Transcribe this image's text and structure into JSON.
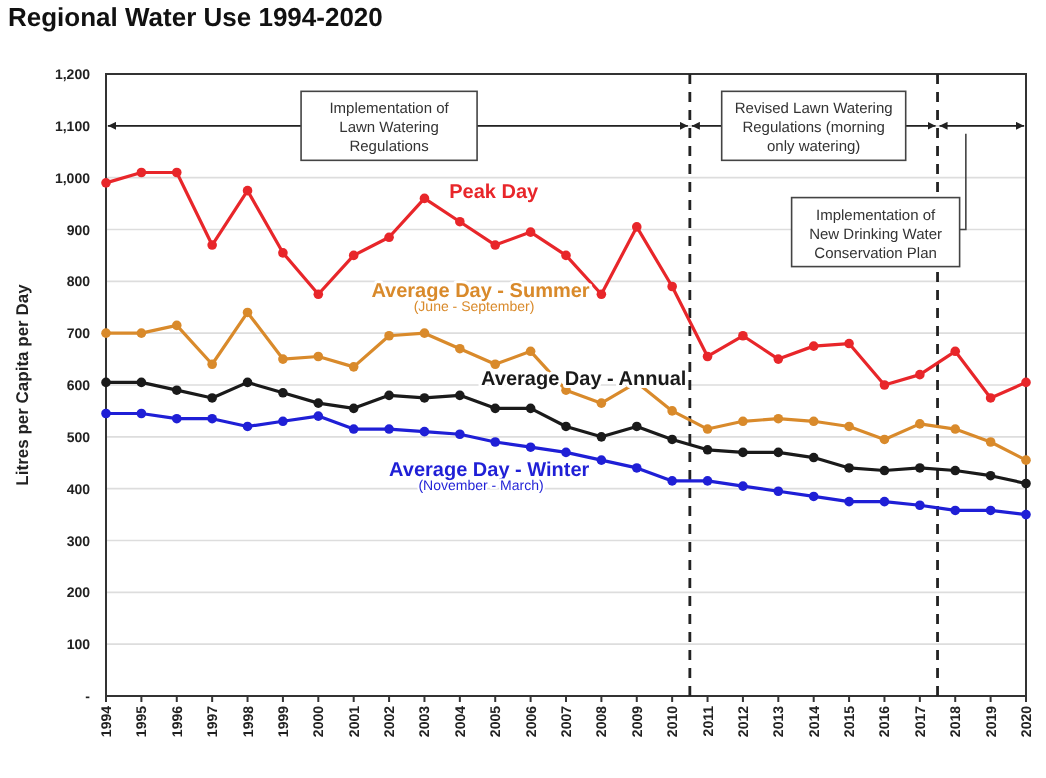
{
  "chart_data": {
    "type": "line",
    "title": "Regional Water Use 1994-2020",
    "ylabel": "Litres per Capita per Day",
    "x": [
      1994,
      1995,
      1996,
      1997,
      1998,
      1999,
      2000,
      2001,
      2002,
      2003,
      2004,
      2005,
      2006,
      2007,
      2008,
      2009,
      2010,
      2011,
      2012,
      2013,
      2014,
      2015,
      2016,
      2017,
      2018,
      2019,
      2020
    ],
    "xlim": [
      1994,
      2020
    ],
    "xticks": [
      1994,
      1995,
      1996,
      1997,
      1998,
      1999,
      2000,
      2001,
      2002,
      2003,
      2004,
      2005,
      2006,
      2007,
      2008,
      2009,
      2010,
      2011,
      2012,
      2013,
      2014,
      2015,
      2016,
      2017,
      2018,
      2019,
      2020
    ],
    "ylim": [
      0,
      1200
    ],
    "yticks": [
      {
        "value": 0,
        "label": "-"
      },
      100,
      200,
      300,
      400,
      500,
      600,
      700,
      800,
      900,
      {
        "value": 1000,
        "label": "1,000"
      },
      {
        "value": 1100,
        "label": "1,100"
      },
      {
        "value": 1200,
        "label": "1,200"
      }
    ],
    "series": [
      {
        "name": "Peak Day",
        "color": "#e8262a",
        "values": [
          990,
          1010,
          1010,
          870,
          975,
          855,
          775,
          850,
          885,
          960,
          915,
          870,
          895,
          850,
          775,
          905,
          790,
          655,
          695,
          650,
          675,
          680,
          600,
          620,
          665,
          575,
          605
        ]
      },
      {
        "name": "Average Day - Summer",
        "color": "#d98a2b",
        "values": [
          700,
          700,
          715,
          640,
          740,
          650,
          655,
          635,
          695,
          700,
          670,
          640,
          665,
          590,
          565,
          605,
          550,
          515,
          530,
          535,
          530,
          520,
          495,
          525,
          515,
          490,
          455
        ]
      },
      {
        "name": "Average Day - Annual",
        "color": "#1a1a1a",
        "values": [
          605,
          605,
          590,
          575,
          605,
          585,
          565,
          555,
          580,
          575,
          580,
          555,
          555,
          520,
          500,
          520,
          495,
          475,
          470,
          470,
          460,
          440,
          435,
          440,
          435,
          425,
          410
        ]
      },
      {
        "name": "Average Day - Winter",
        "color": "#1f1fd6",
        "values": [
          545,
          545,
          535,
          535,
          520,
          530,
          540,
          515,
          515,
          510,
          505,
          490,
          480,
          470,
          455,
          440,
          415,
          415,
          405,
          395,
          385,
          375,
          375,
          368,
          358,
          358,
          350
        ]
      }
    ],
    "ref_lines": [
      {
        "axis": "x",
        "value": 2010.5,
        "line_style": "dashed",
        "color": "#222222"
      },
      {
        "axis": "x",
        "value": 2017.5,
        "line_style": "dashed",
        "color": "#222222"
      }
    ],
    "annotations": [
      "Implementation of Lawn Watering Regulations",
      "Revised Lawn Watering Regulations (morning only watering)",
      "Implementation of New Drinking Water Conservation Plan",
      "(June - September)",
      "(November - March)"
    ],
    "grid": "y",
    "marker": "circle",
    "line_style": "solid"
  }
}
